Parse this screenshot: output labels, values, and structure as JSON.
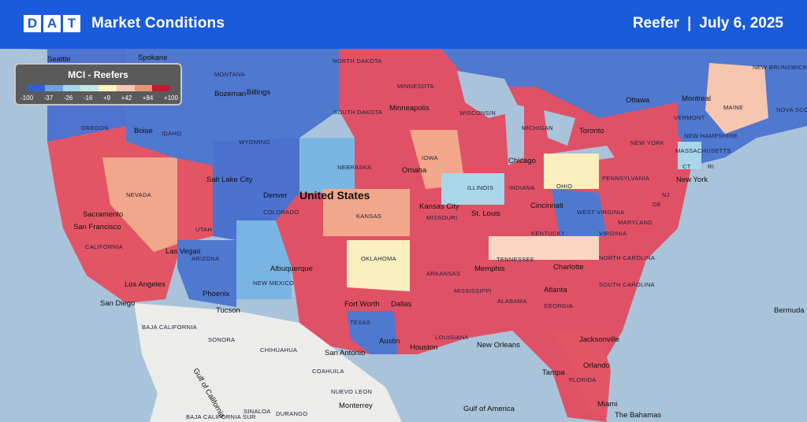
{
  "header": {
    "logo_letters": [
      "D",
      "A",
      "T"
    ],
    "title": "Market Conditions",
    "equipment": "Reefer",
    "separator": "|",
    "date": "July 6, 2025"
  },
  "legend": {
    "title": "MCI - Reefers",
    "colors": [
      "#2f5fd6",
      "#6aa3e0",
      "#a9d6e8",
      "#bfe8e1",
      "#fdf2c0",
      "#f6c6b0",
      "#ec9276",
      "#c4182f"
    ],
    "ticks": [
      "-100",
      "-37",
      "-26",
      "-16",
      "+9",
      "+42",
      "+84",
      "+100"
    ]
  },
  "map": {
    "country_label": "United States",
    "states": [
      "MONTANA",
      "NORTH DAKOTA",
      "MINNESOTA",
      "OREGON",
      "IDAHO",
      "WYOMING",
      "SOUTH DAKOTA",
      "WISCONSIN",
      "MICHIGAN",
      "NEBRASKA",
      "IOWA",
      "ILLINOIS",
      "INDIANA",
      "OHIO",
      "PENNSYLVANIA",
      "NEW YORK",
      "VERMONT",
      "NEW HAMPSHIRE",
      "MASSACHUSETTS",
      "MAINE",
      "NEVADA",
      "UTAH",
      "COLORADO",
      "KANSAS",
      "MISSOURI",
      "KENTUCKY",
      "WEST VIRGINIA",
      "VIRGINIA",
      "MARYLAND",
      "DE",
      "NJ",
      "CT",
      "RI",
      "CALIFORNIA",
      "ARIZONA",
      "NEW MEXICO",
      "OKLAHOMA",
      "ARKANSAS",
      "TENNESSEE",
      "NORTH CAROLINA",
      "SOUTH CAROLINA",
      "MISSISSIPPI",
      "ALABAMA",
      "GEORGIA",
      "LOUISIANA",
      "TEXAS",
      "FLORIDA",
      "SONORA",
      "CHIHUAHUA",
      "COAHUILA",
      "NUEVO LEON",
      "BAJA CALIFORNIA",
      "BAJA CALIFORNIA SUR",
      "SINALOA",
      "DURANGO",
      "NEW BRUNSWICK",
      "NOVA SCOTIA"
    ],
    "cities": [
      "Seattle",
      "Spokane",
      "Bozeman",
      "Billings",
      "Boise",
      "Salt Lake City",
      "Sacramento",
      "San Francisco",
      "Las Vegas",
      "Los Angeles",
      "San Diego",
      "Phoenix",
      "Tucson",
      "Albuquerque",
      "Denver",
      "Omaha",
      "Minneapolis",
      "Chicago",
      "Kansas City",
      "St. Louis",
      "Cincinnati",
      "Toronto",
      "Ottawa",
      "Montreal",
      "New York",
      "Memphis",
      "Charlotte",
      "Atlanta",
      "Fort Worth",
      "Dallas",
      "Austin",
      "San Antonio",
      "Houston",
      "New Orleans",
      "Jacksonville",
      "Orlando",
      "Tampa",
      "Miami",
      "Monterrey",
      "Bermuda",
      "The Bahamas",
      "Gulf of America",
      "Gulf of California"
    ]
  }
}
